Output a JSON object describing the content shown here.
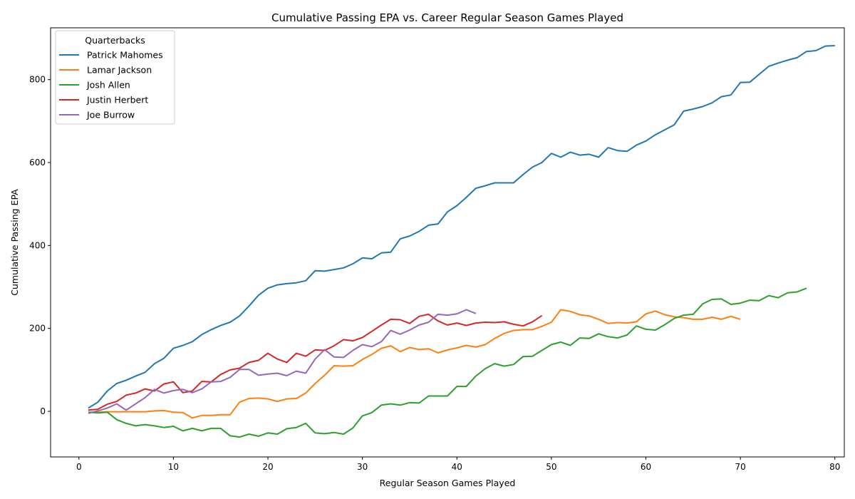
{
  "chart_data": {
    "type": "line",
    "title": "Cumulative Passing EPA vs. Career Regular Season Games Played",
    "xlabel": "Regular Season Games Played",
    "ylabel": "Cumulative Passing EPA",
    "xlim": [
      -3,
      81
    ],
    "ylim": [
      -110,
      925
    ],
    "xticks": [
      0,
      10,
      20,
      30,
      40,
      50,
      60,
      70,
      80
    ],
    "yticks": [
      0,
      200,
      400,
      600,
      800
    ],
    "grid": false,
    "legend": {
      "title": "Quarterbacks",
      "placement": "top-left"
    },
    "series": [
      {
        "name": "Patrick Mahomes",
        "color": "#1f77b4",
        "x": [
          1,
          2,
          3,
          4,
          5,
          6,
          7,
          8,
          9,
          10,
          11,
          12,
          13,
          14,
          15,
          16,
          17,
          18,
          19,
          20,
          21,
          22,
          23,
          24,
          25,
          26,
          27,
          28,
          29,
          30,
          31,
          32,
          33,
          34,
          35,
          36,
          37,
          38,
          39,
          40,
          41,
          42,
          43,
          44,
          45,
          46,
          47,
          48,
          49,
          50,
          51,
          52,
          53,
          54,
          55,
          56,
          57,
          58,
          59,
          60,
          61,
          62,
          63,
          64,
          65,
          66,
          67,
          68,
          69,
          70,
          71,
          72,
          73,
          74,
          75,
          76,
          77,
          78,
          79,
          80
        ],
        "values": [
          8,
          22,
          49,
          67,
          75,
          85,
          94,
          115,
          128,
          152,
          159,
          168,
          185,
          197,
          207,
          215,
          230,
          254,
          280,
          297,
          305,
          308,
          310,
          315,
          339,
          338,
          342,
          346,
          356,
          370,
          368,
          382,
          384,
          416,
          423,
          434,
          449,
          452,
          481,
          496,
          516,
          538,
          544,
          551,
          551,
          551,
          571,
          589,
          600,
          622,
          613,
          625,
          618,
          620,
          613,
          636,
          629,
          627,
          642,
          652,
          667,
          679,
          691,
          724,
          729,
          735,
          744,
          759,
          763,
          793,
          794,
          813,
          832,
          840,
          847,
          853,
          868,
          870,
          881,
          882
        ]
      },
      {
        "name": "Lamar Jackson",
        "color": "#ff7f0e",
        "x": [
          1,
          2,
          3,
          4,
          5,
          6,
          7,
          8,
          9,
          10,
          11,
          12,
          13,
          14,
          15,
          16,
          17,
          18,
          19,
          20,
          21,
          22,
          23,
          24,
          25,
          26,
          27,
          28,
          29,
          30,
          31,
          32,
          33,
          34,
          35,
          36,
          37,
          38,
          39,
          40,
          41,
          42,
          43,
          44,
          45,
          46,
          47,
          48,
          49,
          50,
          51,
          52,
          53,
          54,
          55,
          56,
          57,
          58,
          59,
          60,
          61,
          62,
          63,
          64,
          65,
          66,
          67,
          68,
          69,
          70
        ],
        "values": [
          -2,
          -2,
          -1,
          -1,
          -1,
          -1,
          -1,
          1,
          2,
          -2,
          -3,
          -16,
          -10,
          -10,
          -8,
          -8,
          22,
          31,
          32,
          30,
          24,
          30,
          31,
          44,
          67,
          87,
          110,
          109,
          110,
          125,
          137,
          152,
          158,
          144,
          154,
          149,
          151,
          141,
          148,
          153,
          159,
          155,
          161,
          176,
          188,
          195,
          197,
          197,
          205,
          215,
          245,
          241,
          233,
          230,
          222,
          212,
          214,
          213,
          216,
          235,
          242,
          233,
          228,
          226,
          222,
          222,
          227,
          222,
          229,
          222
        ]
      },
      {
        "name": "Josh Allen",
        "color": "#2ca02c",
        "x": [
          1,
          2,
          3,
          4,
          5,
          6,
          7,
          8,
          9,
          10,
          11,
          12,
          13,
          14,
          15,
          16,
          17,
          18,
          19,
          20,
          21,
          22,
          23,
          24,
          25,
          26,
          27,
          28,
          29,
          30,
          31,
          32,
          33,
          34,
          35,
          36,
          37,
          38,
          39,
          40,
          41,
          42,
          43,
          44,
          45,
          46,
          47,
          48,
          49,
          50,
          51,
          52,
          53,
          54,
          55,
          56,
          57,
          58,
          59,
          60,
          61,
          62,
          63,
          64,
          65,
          66,
          67,
          68,
          69,
          70,
          71,
          72,
          73,
          74,
          75,
          76,
          77
        ],
        "values": [
          -2,
          -4,
          -2,
          -20,
          -29,
          -35,
          -32,
          -35,
          -39,
          -36,
          -47,
          -41,
          -47,
          -41,
          -41,
          -59,
          -62,
          -55,
          -60,
          -52,
          -55,
          -42,
          -39,
          -29,
          -52,
          -54,
          -51,
          -55,
          -40,
          -11,
          -3,
          15,
          18,
          15,
          21,
          20,
          37,
          37,
          37,
          60,
          60,
          85,
          103,
          115,
          109,
          113,
          132,
          133,
          147,
          161,
          167,
          159,
          177,
          176,
          187,
          180,
          177,
          184,
          206,
          198,
          196,
          209,
          224,
          232,
          234,
          259,
          270,
          271,
          258,
          261,
          268,
          267,
          279,
          274,
          286,
          288,
          297
        ]
      },
      {
        "name": "Justin Herbert",
        "color": "#d62728",
        "x": [
          1,
          2,
          3,
          4,
          5,
          6,
          7,
          8,
          9,
          10,
          11,
          12,
          13,
          14,
          15,
          16,
          17,
          18,
          19,
          20,
          21,
          22,
          23,
          24,
          25,
          26,
          27,
          28,
          29,
          30,
          31,
          32,
          33,
          34,
          35,
          36,
          37,
          38,
          39,
          40,
          41,
          42,
          43,
          44,
          45,
          46,
          47,
          48,
          49
        ],
        "values": [
          3,
          5,
          17,
          24,
          39,
          44,
          54,
          49,
          66,
          71,
          45,
          49,
          72,
          71,
          89,
          100,
          104,
          118,
          123,
          140,
          126,
          118,
          140,
          133,
          148,
          147,
          158,
          173,
          170,
          178,
          193,
          208,
          222,
          221,
          212,
          229,
          234,
          218,
          208,
          213,
          207,
          213,
          215,
          214,
          216,
          210,
          206,
          216,
          231
        ]
      },
      {
        "name": "Joe Burrow",
        "color": "#9467bd",
        "x": [
          1,
          2,
          3,
          4,
          5,
          6,
          7,
          8,
          9,
          10,
          11,
          12,
          13,
          14,
          15,
          16,
          17,
          18,
          19,
          20,
          21,
          22,
          23,
          24,
          25,
          26,
          27,
          28,
          29,
          30,
          31,
          32,
          33,
          34,
          35,
          36,
          37,
          38,
          39,
          40,
          41,
          42
        ],
        "values": [
          -5,
          1,
          8,
          18,
          3,
          18,
          33,
          53,
          44,
          50,
          53,
          45,
          54,
          71,
          72,
          82,
          101,
          101,
          87,
          90,
          92,
          86,
          97,
          92,
          126,
          149,
          131,
          130,
          147,
          161,
          156,
          168,
          195,
          186,
          196,
          208,
          215,
          234,
          232,
          235,
          245,
          236
        ]
      }
    ]
  }
}
